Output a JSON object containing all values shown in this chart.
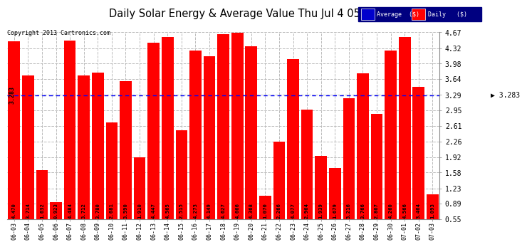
{
  "title": "Daily Solar Energy & Average Value Thu Jul 4 05:27",
  "copyright": "Copyright 2013 Cartronics.com",
  "average_value": 3.283,
  "bar_color": "#FF0000",
  "average_line_color": "#0000FF",
  "categories": [
    "06-03",
    "06-04",
    "06-05",
    "06-06",
    "06-07",
    "06-08",
    "06-09",
    "06-10",
    "06-11",
    "06-12",
    "06-13",
    "06-14",
    "06-15",
    "06-16",
    "06-17",
    "06-18",
    "06-19",
    "06-20",
    "06-21",
    "06-22",
    "06-23",
    "06-24",
    "06-25",
    "06-26",
    "06-27",
    "06-28",
    "06-29",
    "06-30",
    "07-01",
    "07-02",
    "07-03"
  ],
  "values": [
    4.47,
    3.714,
    1.632,
    0.923,
    4.484,
    3.712,
    3.78,
    2.681,
    3.59,
    1.91,
    4.447,
    4.565,
    2.515,
    4.273,
    4.149,
    4.627,
    4.666,
    4.368,
    1.07,
    2.266,
    4.077,
    2.964,
    1.939,
    1.679,
    3.216,
    3.766,
    2.867,
    4.26,
    4.566,
    3.464,
    1.093
  ],
  "ylim_min": 0.55,
  "ylim_max": 4.67,
  "yticks": [
    0.55,
    0.89,
    1.23,
    1.58,
    1.92,
    2.26,
    2.61,
    2.95,
    3.29,
    3.64,
    3.98,
    4.32,
    4.67
  ],
  "background_color": "#FFFFFF",
  "grid_color": "#BBBBBB",
  "legend_avg_color": "#0000CC",
  "legend_daily_color": "#FF0000",
  "avg_label": "Average  ($)",
  "daily_label": "Daily   ($)",
  "avg_annotation": "3.283",
  "avg_left_label": "3.283"
}
